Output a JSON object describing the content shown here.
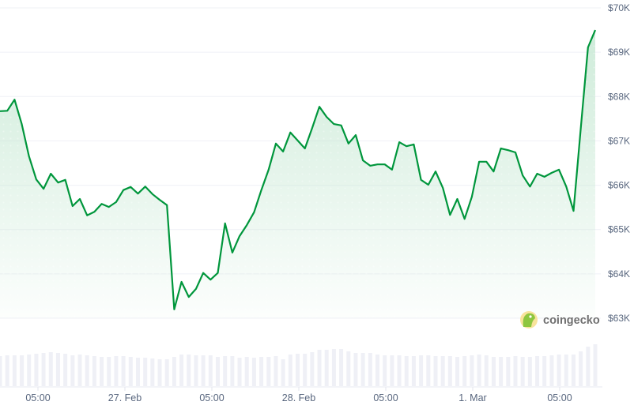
{
  "chart_data": {
    "type": "line",
    "title": "",
    "xlabel": "",
    "ylabel": "",
    "ylim": [
      63000,
      70000
    ],
    "y_ticks": [
      "$63K",
      "$64K",
      "$65K",
      "$66K",
      "$67K",
      "$68K",
      "$69K",
      "$70K"
    ],
    "x_ticks": [
      "05:00",
      "27. Feb",
      "05:00",
      "28. Feb",
      "05:00",
      "1. Mar",
      "05:00"
    ],
    "grid": true,
    "line_color": "#00963c",
    "fill_color": "#c6e8d3",
    "volume_color": "#eff0f6",
    "watermark": "coingecko",
    "series": [
      {
        "values": [
          67670,
          67680,
          67930,
          67380,
          66650,
          66130,
          65920,
          66260,
          66060,
          66120,
          65530,
          65690,
          65320,
          65400,
          65580,
          65510,
          65620,
          65890,
          65960,
          65810,
          65970,
          65800,
          65670,
          65550,
          63200,
          63820,
          63480,
          63660,
          64020,
          63870,
          64020,
          65140,
          64480,
          64850,
          65100,
          65390,
          65890,
          66350,
          66940,
          66760,
          67190,
          67010,
          66830,
          67290,
          67770,
          67540,
          67380,
          67350,
          66940,
          67130,
          66560,
          66440,
          66470,
          66470,
          66350,
          66970,
          66880,
          66920,
          66120,
          66010,
          66310,
          65940,
          65330,
          65690,
          65240,
          65740,
          66530,
          66530,
          66310,
          66830,
          66790,
          66740,
          66220,
          65970,
          66260,
          66190,
          66280,
          66350,
          65970,
          65420,
          67270,
          69110,
          69500
        ]
      }
    ],
    "volume_relative": [
      38,
      39,
      39,
      39,
      40,
      41,
      42,
      43,
      42,
      41,
      39,
      40,
      39,
      38,
      37,
      37,
      38,
      38,
      37,
      36,
      36,
      35,
      34,
      34,
      37,
      40,
      40,
      39,
      39,
      39,
      37,
      38,
      38,
      36,
      37,
      36,
      37,
      37,
      38,
      34,
      40,
      41,
      41,
      43,
      46,
      46,
      47,
      47,
      44,
      42,
      42,
      42,
      40,
      39,
      39,
      39,
      38,
      38,
      39,
      39,
      38,
      38,
      38,
      37,
      38,
      39,
      40,
      39,
      37,
      37,
      37,
      38,
      37,
      37,
      38,
      38,
      39,
      40,
      40,
      40,
      44,
      50,
      53
    ]
  }
}
